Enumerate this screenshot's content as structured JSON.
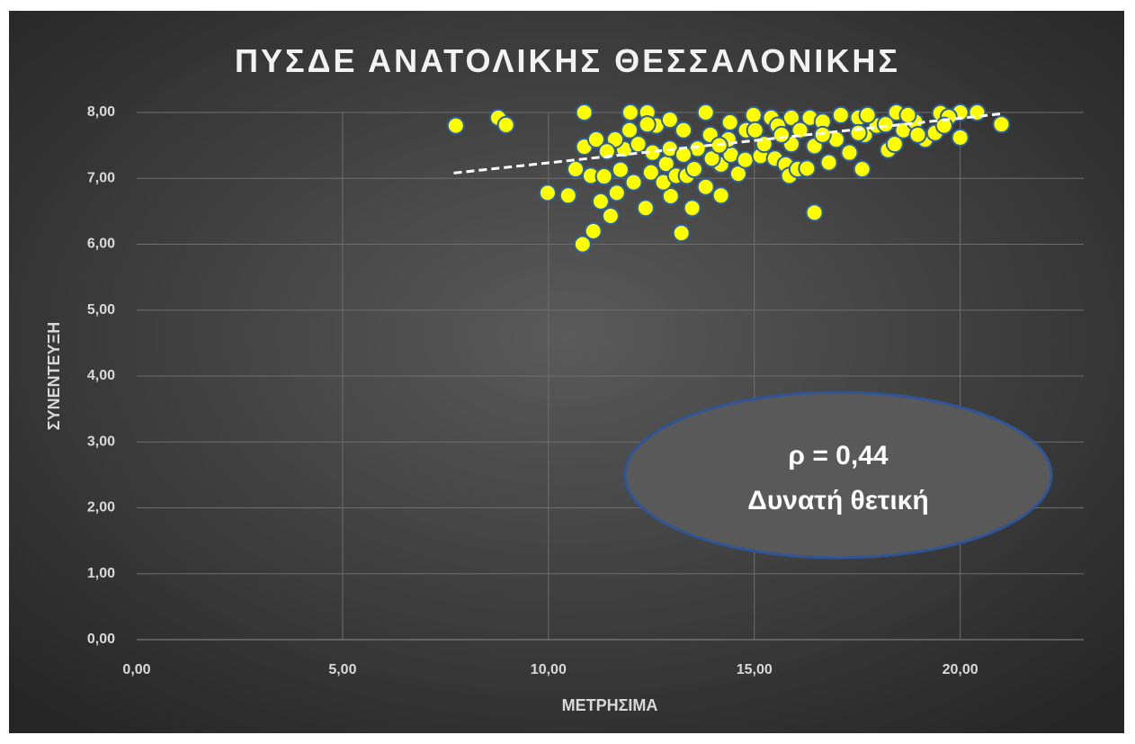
{
  "chart_data": {
    "type": "scatter",
    "title": "ΠΥΣΔΕ ΑΝΑΤΟΛΙΚΗΣ ΘΕΣΣΑΛΟΝΙΚΗΣ",
    "x_label": "ΜΕΤΡΗΣΙΜΑ",
    "y_label": "ΣΥΝΕΝΤΕΥΞΗ",
    "xlim": [
      0,
      23
    ],
    "ylim": [
      0,
      8
    ],
    "xticks": [
      {
        "value": 0,
        "label": "0,00"
      },
      {
        "value": 5,
        "label": "5,00"
      },
      {
        "value": 10,
        "label": "10,00"
      },
      {
        "value": 15,
        "label": "15,00"
      },
      {
        "value": 20,
        "label": "20,00"
      }
    ],
    "yticks": [
      {
        "value": 0,
        "label": "0,00"
      },
      {
        "value": 1,
        "label": "1,00"
      },
      {
        "value": 2,
        "label": "2,00"
      },
      {
        "value": 3,
        "label": "3,00"
      },
      {
        "value": 4,
        "label": "4,00"
      },
      {
        "value": 5,
        "label": "5,00"
      },
      {
        "value": 6,
        "label": "6,00"
      },
      {
        "value": 7,
        "label": "7,00"
      },
      {
        "value": 8,
        "label": "8,00"
      }
    ],
    "grid": true,
    "color": "#ffff00",
    "series": [
      {
        "color": "#ffff00",
        "x": [
          7.75,
          8.78,
          8.97,
          10.87,
          9.98,
          10.48,
          10.83,
          11.09,
          11.51,
          11.27,
          11.66,
          12.07,
          12.36,
          12.97,
          13.23,
          13.49,
          13.82,
          14.19,
          14.19,
          16.46,
          17.62,
          16.81,
          20.0,
          21.0,
          20.41,
          20.0,
          19.52,
          19.15,
          18.25,
          18.45,
          17.53,
          16.35,
          15.9,
          15.41,
          14.98,
          14.41,
          13.82,
          12.4,
          11.99,
          10.66,
          10.87,
          11.16,
          11.03,
          11.35,
          11.75,
          11.84,
          12.18,
          12.49,
          12.86,
          12.79,
          13.1,
          13.36,
          13.54,
          13.62,
          13.97,
          14.43,
          14.61,
          14.78,
          15.15,
          15.5,
          15.76,
          15.85,
          16.05,
          15.9,
          16.28,
          16.46,
          16.99,
          17.31,
          17.68,
          17.97,
          18.41,
          18.62,
          18.9,
          19.39,
          11.62,
          11.97,
          12.62,
          12.95,
          13.28,
          13.93,
          14.37,
          14.8,
          15.24,
          15.57,
          16.11,
          16.66,
          17.1,
          17.75,
          18.19,
          18.73,
          19.72,
          16.66,
          17.53,
          12.95,
          13.28,
          14.15,
          15.02,
          15.66,
          12.4,
          11.42,
          12.53,
          19.61,
          18.97
        ],
        "values": [
          7.8,
          7.92,
          7.81,
          8.0,
          6.78,
          6.74,
          6.0,
          6.2,
          6.43,
          6.65,
          6.78,
          6.94,
          6.55,
          6.73,
          6.17,
          6.55,
          6.87,
          6.74,
          7.21,
          6.48,
          7.14,
          7.24,
          7.62,
          7.82,
          8.0,
          8.0,
          7.99,
          7.59,
          7.43,
          8.0,
          7.92,
          7.92,
          7.92,
          7.92,
          7.96,
          7.85,
          8.0,
          8.0,
          8.0,
          7.14,
          7.48,
          7.59,
          7.04,
          7.03,
          7.13,
          7.44,
          7.52,
          7.09,
          7.22,
          6.94,
          7.04,
          7.04,
          7.14,
          7.45,
          7.3,
          7.36,
          7.07,
          7.28,
          7.34,
          7.3,
          7.21,
          7.04,
          7.14,
          7.52,
          7.15,
          7.49,
          7.59,
          7.39,
          7.66,
          7.8,
          7.52,
          7.73,
          7.86,
          7.69,
          7.59,
          7.73,
          7.8,
          7.89,
          7.73,
          7.66,
          7.59,
          7.73,
          7.52,
          7.8,
          7.73,
          7.86,
          7.96,
          7.96,
          7.82,
          7.96,
          7.93,
          7.66,
          7.69,
          7.45,
          7.36,
          7.5,
          7.73,
          7.66,
          7.82,
          7.41,
          7.39,
          7.8,
          7.66
        ]
      }
    ],
    "trendline": {
      "x": [
        7.7,
        21.0
      ],
      "y": [
        7.08,
        7.98
      ]
    },
    "annotation": {
      "lines": [
        "ρ = 0,44",
        "Δυνατή θετική"
      ]
    }
  }
}
